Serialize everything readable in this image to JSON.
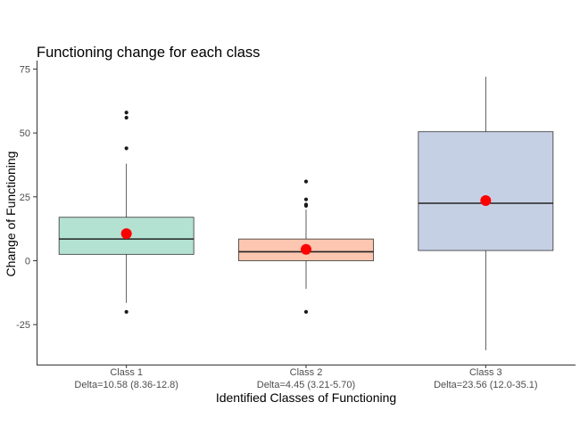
{
  "chart_data": {
    "type": "boxplot",
    "title": "Functioning change for each class",
    "xlabel": "Identified Classes of Functioning",
    "ylabel": "Change of Functioning",
    "ylim": [
      -40,
      78
    ],
    "yticks": [
      -25,
      0,
      25,
      50,
      75
    ],
    "grid": false,
    "legend": "none",
    "mean_color": "#ff0000",
    "categories": [
      {
        "name": "Class 1",
        "sublabel": "Delta=10.58 (8.36-12.8)",
        "fill": "#b3e2d3",
        "whisker_low": -16.5,
        "q1": 2.5,
        "median": 8.5,
        "q3": 17,
        "whisker_high": 38,
        "mean": 10.58,
        "outliers": [
          58,
          56,
          44,
          -20
        ]
      },
      {
        "name": "Class 2",
        "sublabel": "Delta=4.45 (3.21-5.70)",
        "fill": "#fcc6b0",
        "whisker_low": -11,
        "q1": 0,
        "median": 3.5,
        "q3": 8.5,
        "whisker_high": 20,
        "mean": 4.45,
        "outliers": [
          31,
          24,
          22,
          21.5,
          -20
        ]
      },
      {
        "name": "Class 3",
        "sublabel": "Delta=23.56 (12.0-35.1)",
        "fill": "#c6d0e5",
        "whisker_low": -35,
        "q1": 4,
        "median": 22.5,
        "q3": 50.5,
        "whisker_high": 72,
        "mean": 23.56,
        "outliers": []
      }
    ]
  }
}
